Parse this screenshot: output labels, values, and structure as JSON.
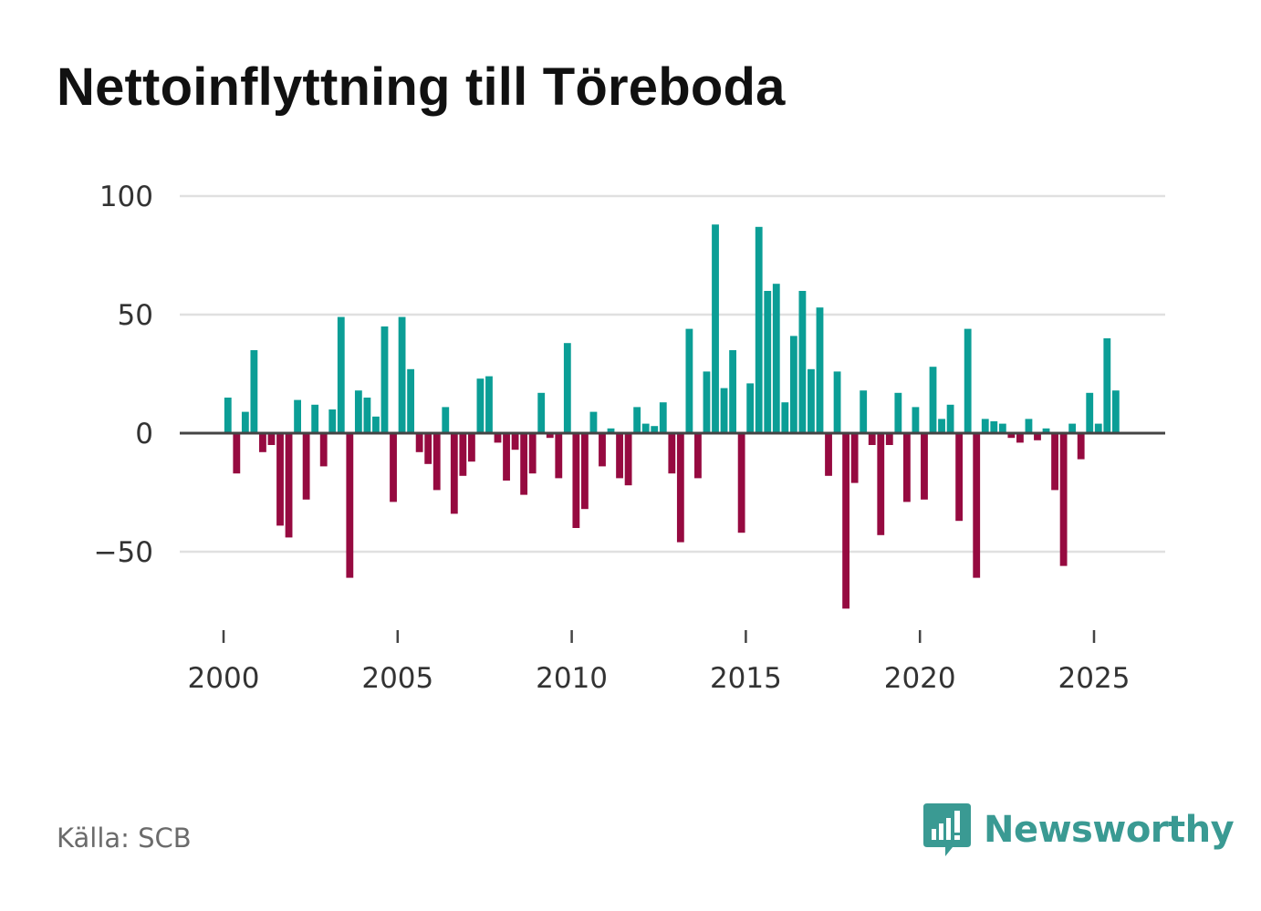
{
  "title": "Nettoinflyttning till Töreboda",
  "source": "Källa: SCB",
  "brand": {
    "name": "Newsworthy",
    "icon": "newsworthy-logo-icon"
  },
  "colors": {
    "positive": "#0b9e96",
    "negative": "#960a40",
    "grid": "#e0e0e0",
    "zero_line": "#444444",
    "brand": "#3a9a93"
  },
  "chart_data": {
    "type": "bar",
    "title": "Nettoinflyttning till Töreboda",
    "xlabel": "",
    "ylabel": "",
    "ylim": [
      -75,
      100
    ],
    "xlim": [
      1999.2,
      2027.0
    ],
    "yticks": [
      100,
      50,
      0,
      -50
    ],
    "ytick_labels": [
      "100",
      "50",
      "0",
      "−50"
    ],
    "xticks": [
      2000,
      2005,
      2010,
      2015,
      2020,
      2025
    ],
    "xtick_labels": [
      "2000",
      "2005",
      "2010",
      "2015",
      "2020",
      "2025"
    ],
    "grid": true,
    "start_year": 2000,
    "period": "quarter",
    "values": [
      15,
      -17,
      9,
      35,
      -8,
      -5,
      -39,
      -44,
      14,
      -28,
      12,
      -14,
      10,
      49,
      -61,
      18,
      15,
      7,
      45,
      -29,
      49,
      27,
      -8,
      -13,
      -24,
      11,
      -34,
      -18,
      -12,
      23,
      24,
      -4,
      -20,
      -7,
      -26,
      -17,
      17,
      -2,
      -19,
      38,
      -40,
      -32,
      9,
      -14,
      2,
      -19,
      -22,
      11,
      4,
      3,
      13,
      -17,
      -46,
      44,
      -19,
      26,
      88,
      19,
      35,
      -42,
      21,
      87,
      60,
      63,
      13,
      41,
      60,
      27,
      53,
      -18,
      26,
      -74,
      -21,
      18,
      -5,
      -43,
      -5,
      17,
      -29,
      11,
      -28,
      28,
      6,
      12,
      -37,
      44,
      -61,
      6,
      5,
      4,
      -2,
      -4,
      6,
      -3,
      2,
      -24,
      -56,
      4,
      -11,
      17,
      4,
      40,
      18
    ]
  }
}
